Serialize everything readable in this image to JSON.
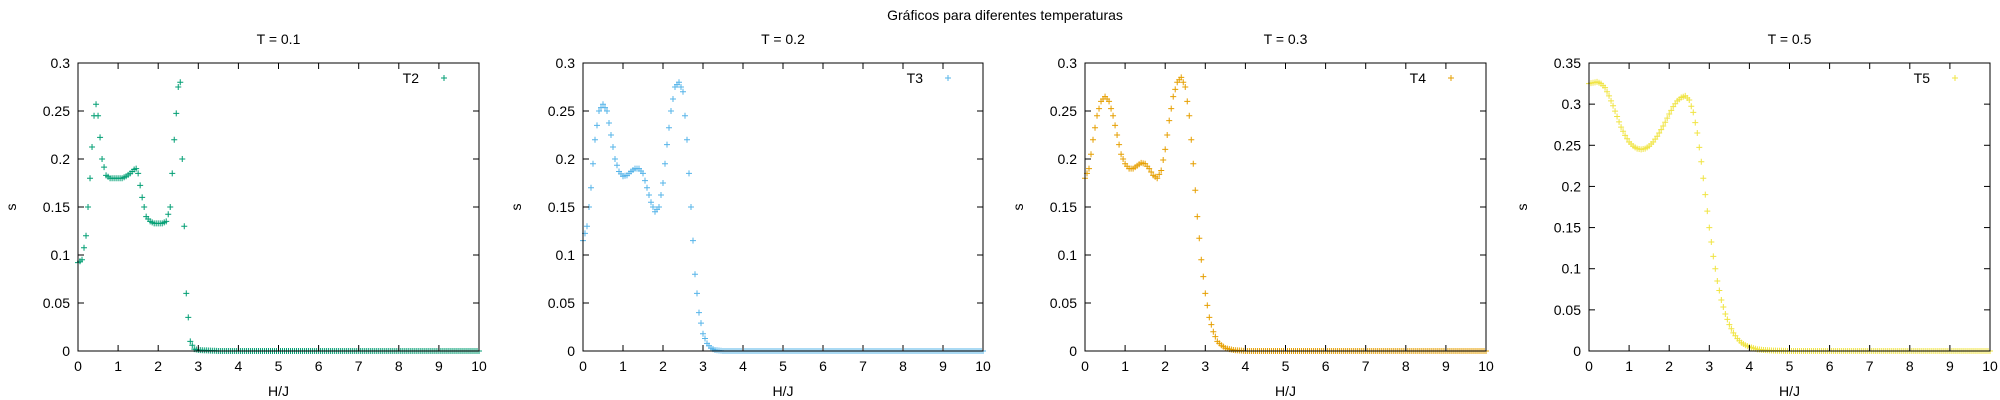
{
  "figure_title": "Gráficos para diferentes temperaturas",
  "chart_data": [
    {
      "type": "scatter",
      "title": "T = 0.1",
      "xlabel": "H/J",
      "ylabel": "s",
      "xlim": [
        0,
        10
      ],
      "ylim": [
        0,
        0.3
      ],
      "xticks": [
        "0",
        "1",
        "2",
        "3",
        "4",
        "5",
        "6",
        "7",
        "8",
        "9",
        "10"
      ],
      "yticks": [
        "0",
        "0.05",
        "0.1",
        "0.15",
        "0.2",
        "0.25",
        "0.3"
      ],
      "legend_position": "top-right",
      "grid": false,
      "marker": "+",
      "series": [
        {
          "name": "T2",
          "color": "#009e73",
          "x": [
            0,
            0.1,
            0.2,
            0.3,
            0.4,
            0.45,
            0.5,
            0.6,
            0.7,
            0.8,
            0.9,
            1,
            1.1,
            1.2,
            1.3,
            1.4,
            1.45,
            1.5,
            1.6,
            1.7,
            1.8,
            1.9,
            2,
            2.1,
            2.2,
            2.3,
            2.4,
            2.5,
            2.55,
            2.6,
            2.7,
            2.8,
            2.9,
            3,
            3.5,
            4,
            5,
            6,
            7,
            8,
            9,
            10
          ],
          "y": [
            0.092,
            0.095,
            0.12,
            0.18,
            0.245,
            0.257,
            0.245,
            0.2,
            0.183,
            0.18,
            0.18,
            0.18,
            0.18,
            0.182,
            0.185,
            0.189,
            0.19,
            0.185,
            0.16,
            0.14,
            0.135,
            0.133,
            0.133,
            0.133,
            0.135,
            0.15,
            0.22,
            0.275,
            0.28,
            0.2,
            0.06,
            0.01,
            0.002,
            0.001,
            0,
            0,
            0,
            0,
            0,
            0,
            0,
            0
          ]
        }
      ]
    },
    {
      "type": "scatter",
      "title": "T = 0.2",
      "xlabel": "H/J",
      "ylabel": "s",
      "xlim": [
        0,
        10
      ],
      "ylim": [
        0,
        0.3
      ],
      "xticks": [
        "0",
        "1",
        "2",
        "3",
        "4",
        "5",
        "6",
        "7",
        "8",
        "9",
        "10"
      ],
      "yticks": [
        "0",
        "0.05",
        "0.1",
        "0.15",
        "0.2",
        "0.25",
        "0.3"
      ],
      "legend_position": "top-right",
      "grid": false,
      "marker": "+",
      "series": [
        {
          "name": "T3",
          "color": "#56b4e9",
          "x": [
            0,
            0.1,
            0.2,
            0.3,
            0.4,
            0.5,
            0.6,
            0.7,
            0.8,
            0.9,
            1,
            1.1,
            1.2,
            1.3,
            1.4,
            1.5,
            1.6,
            1.7,
            1.8,
            1.9,
            2,
            2.1,
            2.2,
            2.3,
            2.4,
            2.5,
            2.6,
            2.7,
            2.8,
            2.9,
            3,
            3.1,
            3.2,
            3.3,
            3.5,
            4,
            5,
            6,
            7,
            8,
            9,
            10
          ],
          "y": [
            0.115,
            0.13,
            0.17,
            0.22,
            0.25,
            0.257,
            0.25,
            0.225,
            0.2,
            0.187,
            0.182,
            0.183,
            0.187,
            0.19,
            0.19,
            0.185,
            0.17,
            0.155,
            0.145,
            0.15,
            0.175,
            0.215,
            0.25,
            0.275,
            0.28,
            0.27,
            0.22,
            0.15,
            0.08,
            0.04,
            0.018,
            0.008,
            0.003,
            0.001,
            0,
            0,
            0,
            0,
            0,
            0,
            0,
            0
          ]
        }
      ]
    },
    {
      "type": "scatter",
      "title": "T = 0.3",
      "xlabel": "H/J",
      "ylabel": "s",
      "xlim": [
        0,
        10
      ],
      "ylim": [
        0,
        0.3
      ],
      "xticks": [
        "0",
        "1",
        "2",
        "3",
        "4",
        "5",
        "6",
        "7",
        "8",
        "9",
        "10"
      ],
      "yticks": [
        "0",
        "0.05",
        "0.1",
        "0.15",
        "0.2",
        "0.25",
        "0.3"
      ],
      "legend_position": "top-right",
      "grid": false,
      "marker": "+",
      "series": [
        {
          "name": "T4",
          "color": "#e69f00",
          "x": [
            0,
            0.1,
            0.2,
            0.3,
            0.4,
            0.5,
            0.6,
            0.7,
            0.8,
            0.9,
            1,
            1.1,
            1.2,
            1.3,
            1.4,
            1.5,
            1.6,
            1.7,
            1.8,
            1.9,
            2,
            2.1,
            2.2,
            2.3,
            2.4,
            2.5,
            2.6,
            2.7,
            2.8,
            2.9,
            3,
            3.1,
            3.2,
            3.3,
            3.4,
            3.5,
            3.7,
            4,
            5,
            6,
            7,
            8,
            9,
            10
          ],
          "y": [
            0.18,
            0.19,
            0.22,
            0.245,
            0.26,
            0.265,
            0.26,
            0.245,
            0.225,
            0.205,
            0.195,
            0.19,
            0.19,
            0.193,
            0.196,
            0.195,
            0.19,
            0.183,
            0.18,
            0.188,
            0.21,
            0.24,
            0.265,
            0.28,
            0.285,
            0.275,
            0.245,
            0.195,
            0.14,
            0.095,
            0.06,
            0.035,
            0.02,
            0.01,
            0.006,
            0.003,
            0.001,
            0,
            0,
            0,
            0,
            0,
            0,
            0
          ]
        }
      ]
    },
    {
      "type": "scatter",
      "title": "T = 0.5",
      "xlabel": "H/J",
      "ylabel": "s",
      "xlim": [
        0,
        10
      ],
      "ylim": [
        0,
        0.35
      ],
      "xticks": [
        "0",
        "1",
        "2",
        "3",
        "4",
        "5",
        "6",
        "7",
        "8",
        "9",
        "10"
      ],
      "yticks": [
        "0",
        "0.05",
        "0.1",
        "0.15",
        "0.2",
        "0.25",
        "0.3",
        "0.35"
      ],
      "legend_position": "top-right",
      "grid": false,
      "marker": "+",
      "series": [
        {
          "name": "T5",
          "color": "#f0e442",
          "x": [
            0,
            0.1,
            0.2,
            0.3,
            0.4,
            0.5,
            0.6,
            0.7,
            0.8,
            0.9,
            1,
            1.1,
            1.2,
            1.3,
            1.4,
            1.5,
            1.6,
            1.7,
            1.8,
            1.9,
            2,
            2.1,
            2.2,
            2.3,
            2.4,
            2.5,
            2.6,
            2.7,
            2.8,
            2.9,
            3,
            3.1,
            3.2,
            3.3,
            3.4,
            3.5,
            3.6,
            3.7,
            3.8,
            3.9,
            4,
            4.2,
            4.4,
            4.6,
            5,
            6,
            7,
            8,
            9,
            10
          ],
          "y": [
            0.325,
            0.326,
            0.327,
            0.325,
            0.32,
            0.31,
            0.298,
            0.285,
            0.272,
            0.262,
            0.254,
            0.249,
            0.246,
            0.245,
            0.246,
            0.249,
            0.254,
            0.261,
            0.269,
            0.278,
            0.288,
            0.297,
            0.304,
            0.308,
            0.31,
            0.305,
            0.29,
            0.265,
            0.23,
            0.19,
            0.15,
            0.115,
            0.085,
            0.062,
            0.045,
            0.032,
            0.022,
            0.015,
            0.01,
            0.007,
            0.005,
            0.002,
            0.001,
            0.0005,
            0,
            0,
            0,
            0,
            0,
            0
          ]
        }
      ]
    }
  ]
}
